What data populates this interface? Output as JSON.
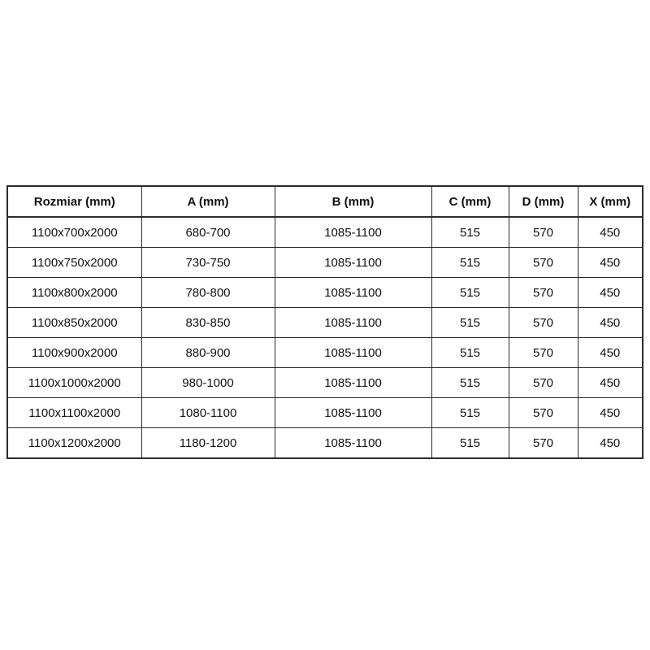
{
  "page": {
    "background_color": "#ffffff",
    "border_color": "#2b2b2b",
    "text_color": "#111111"
  },
  "table": {
    "columns": [
      "Rozmiar (mm)",
      "A (mm)",
      "B (mm)",
      "C (mm)",
      "D (mm)",
      "X (mm)"
    ],
    "rows": [
      [
        "1100x700x2000",
        "680-700",
        "1085-1100",
        "515",
        "570",
        "450"
      ],
      [
        "1100x750x2000",
        "730-750",
        "1085-1100",
        "515",
        "570",
        "450"
      ],
      [
        "1100x800x2000",
        "780-800",
        "1085-1100",
        "515",
        "570",
        "450"
      ],
      [
        "1100x850x2000",
        "830-850",
        "1085-1100",
        "515",
        "570",
        "450"
      ],
      [
        "1100x900x2000",
        "880-900",
        "1085-1100",
        "515",
        "570",
        "450"
      ],
      [
        "1100x1000x2000",
        "980-1000",
        "1085-1100",
        "515",
        "570",
        "450"
      ],
      [
        "1100x1100x2000",
        "1080-1100",
        "1085-1100",
        "515",
        "570",
        "450"
      ],
      [
        "1100x1200x2000",
        "1180-1200",
        "1085-1100",
        "515",
        "570",
        "450"
      ]
    ]
  }
}
